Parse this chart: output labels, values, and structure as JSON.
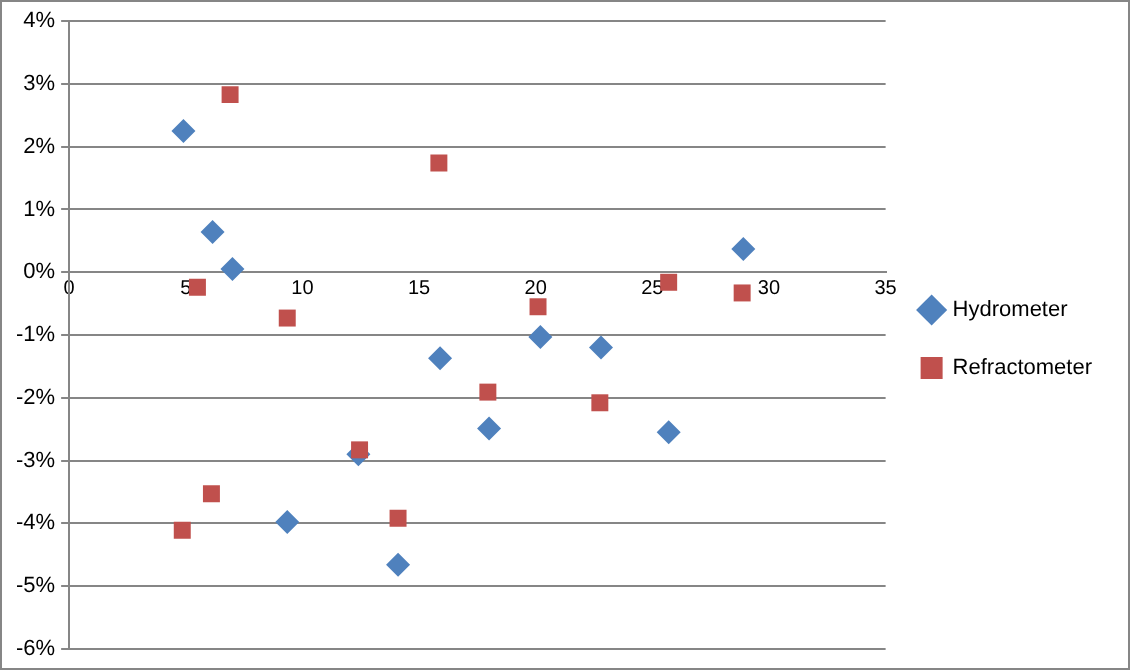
{
  "chart_data": {
    "type": "scatter",
    "xlim": [
      0,
      35
    ],
    "xticks": [
      0,
      5,
      10,
      15,
      20,
      25,
      30,
      35
    ],
    "ylim": [
      -6,
      4
    ],
    "yticks": [
      {
        "value": -6,
        "label": "-6%"
      },
      {
        "value": -5,
        "label": "-5%"
      },
      {
        "value": -4,
        "label": "-4%"
      },
      {
        "value": -3,
        "label": "-3%"
      },
      {
        "value": -2,
        "label": "-2%"
      },
      {
        "value": -1,
        "label": "-1%"
      },
      {
        "value": 0,
        "label": "0%"
      },
      {
        "value": 1,
        "label": "1%"
      },
      {
        "value": 2,
        "label": "2%"
      },
      {
        "value": 3,
        "label": "3%"
      },
      {
        "value": 4,
        "label": "4%"
      }
    ],
    "grid": "y",
    "legend": "right",
    "series": [
      {
        "name": "Hydrometer",
        "color": "#4f81bd",
        "marker": "diamond",
        "x": [
          4.9,
          6.15,
          7.0,
          28.9,
          9.35,
          12.4,
          14.1,
          15.9,
          18.0,
          20.2,
          22.8,
          25.7
        ],
        "values": [
          2.25,
          0.64,
          0.05,
          0.37,
          -3.98,
          -2.9,
          -4.66,
          -1.37,
          -2.49,
          -1.03,
          -1.2,
          -2.55
        ]
      },
      {
        "name": "Refractometer",
        "color": "#c0504d",
        "marker": "square",
        "x": [
          6.9,
          15.85,
          5.5,
          9.35,
          20.1,
          25.7,
          28.85,
          4.85,
          6.1,
          12.45,
          14.1,
          17.95,
          22.75
        ],
        "values": [
          2.83,
          1.74,
          -0.24,
          -0.73,
          -0.55,
          -0.16,
          -0.33,
          -4.11,
          -3.53,
          -2.83,
          -3.92,
          -1.91,
          -2.08
        ]
      }
    ]
  }
}
